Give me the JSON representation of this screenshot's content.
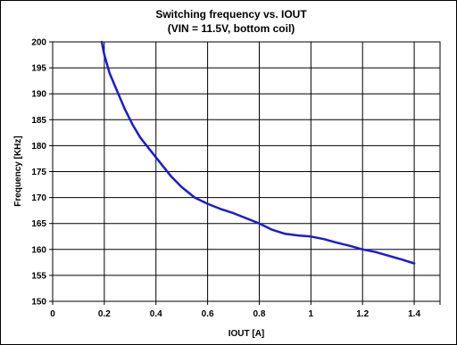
{
  "chart_data": {
    "type": "line",
    "title": "Switching  frequency vs. IOUT",
    "subtitle": "(VIN = 11.5V, bottom coil)",
    "xlabel": "IOUT [A]",
    "ylabel": "Frequency [KHz]",
    "xlim": [
      0,
      1.5
    ],
    "ylim": [
      150,
      200
    ],
    "xticks": [
      "0",
      "0.2",
      "0.4",
      "0.6",
      "0.8",
      "1",
      "1.2",
      "1.4"
    ],
    "yticks": [
      "150",
      "155",
      "160",
      "165",
      "170",
      "175",
      "180",
      "185",
      "190",
      "195",
      "200"
    ],
    "grid": true,
    "series": [
      {
        "color": "#1a1ad9",
        "x": [
          0.19,
          0.2,
          0.22,
          0.25,
          0.28,
          0.31,
          0.34,
          0.38,
          0.42,
          0.46,
          0.5,
          0.55,
          0.6,
          0.65,
          0.7,
          0.75,
          0.8,
          0.85,
          0.9,
          0.95,
          1.0,
          1.05,
          1.1,
          1.15,
          1.2,
          1.25,
          1.3,
          1.35,
          1.4
        ],
        "y": [
          200,
          197.5,
          194,
          190.5,
          187,
          184,
          181.5,
          179,
          176.5,
          174,
          172,
          170,
          168.8,
          167.8,
          167,
          166,
          165,
          163.8,
          163,
          162.7,
          162.5,
          162,
          161.3,
          160.7,
          160,
          159.5,
          158.8,
          158.1,
          157.3
        ]
      }
    ]
  }
}
